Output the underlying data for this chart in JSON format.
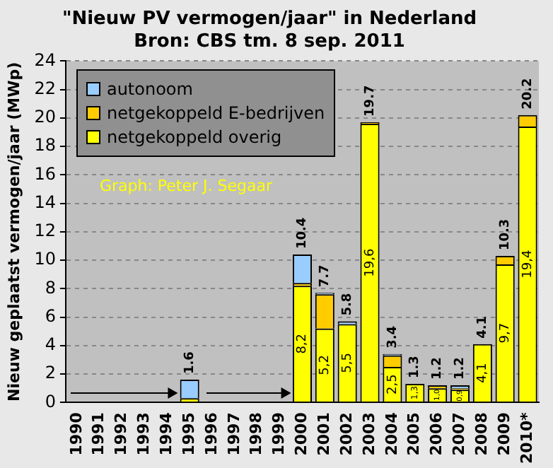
{
  "chart_data": {
    "type": "bar",
    "title": "\"Nieuw PV vermogen/jaar\" in Nederland",
    "subtitle": "Bron: CBS tm. 8 sep. 2011",
    "ylabel": "Nieuw geplaatst vermogen/jaar (MWp)",
    "categories": [
      "1990",
      "1991",
      "1992",
      "1993",
      "1994",
      "1995",
      "1996",
      "1997",
      "1998",
      "1999",
      "2000",
      "2001",
      "2002",
      "2003",
      "2004",
      "2005",
      "2006",
      "2007",
      "2008",
      "2009",
      "2010*"
    ],
    "stacked": true,
    "series": [
      {
        "name": "netgekoppeld overig",
        "color": "#ffff00",
        "values": [
          0,
          0,
          0,
          0,
          0,
          0.3,
          0,
          0,
          0,
          0,
          8.2,
          5.2,
          5.5,
          19.6,
          2.5,
          1.3,
          1.0,
          0.9,
          4.1,
          9.7,
          19.4
        ],
        "value_labels": [
          null,
          null,
          null,
          null,
          null,
          null,
          null,
          null,
          null,
          null,
          "8,2",
          "5,2",
          "5,5",
          "19,6",
          "2,5",
          "1,3",
          "1,0",
          "0,9",
          "4,1",
          "9,7",
          "19,4"
        ]
      },
      {
        "name": "netgekoppeld E-bedrijven",
        "color": "#ffcc00",
        "values": [
          0,
          0,
          0,
          0,
          0,
          0,
          0,
          0,
          0,
          0,
          0.2,
          2.4,
          null,
          0.1,
          0.8,
          0,
          0.2,
          0.1,
          0,
          0.6,
          0.8
        ]
      },
      {
        "name": "autonoom",
        "color": "#99ccff",
        "values": [
          0,
          0,
          0,
          0,
          0,
          1.3,
          0,
          0,
          0,
          0,
          2.0,
          0.1,
          0.2,
          0,
          0.1,
          0,
          0,
          0.2,
          0,
          0,
          0
        ]
      }
    ],
    "totals": [
      null,
      null,
      null,
      null,
      null,
      "1.6",
      null,
      null,
      null,
      null,
      "10.4",
      "7.7",
      "5.8",
      "19.7",
      "3.4",
      "1.3",
      "1.2",
      "1.2",
      "4.1",
      "10.3",
      "20.2"
    ],
    "ylim": [
      0,
      24
    ],
    "yticks": [
      0,
      2,
      4,
      6,
      8,
      10,
      12,
      14,
      16,
      18,
      20,
      22,
      24
    ],
    "grid": "y",
    "legend": "top left",
    "annotations": [
      "Graph: Peter J. Segaar"
    ]
  }
}
